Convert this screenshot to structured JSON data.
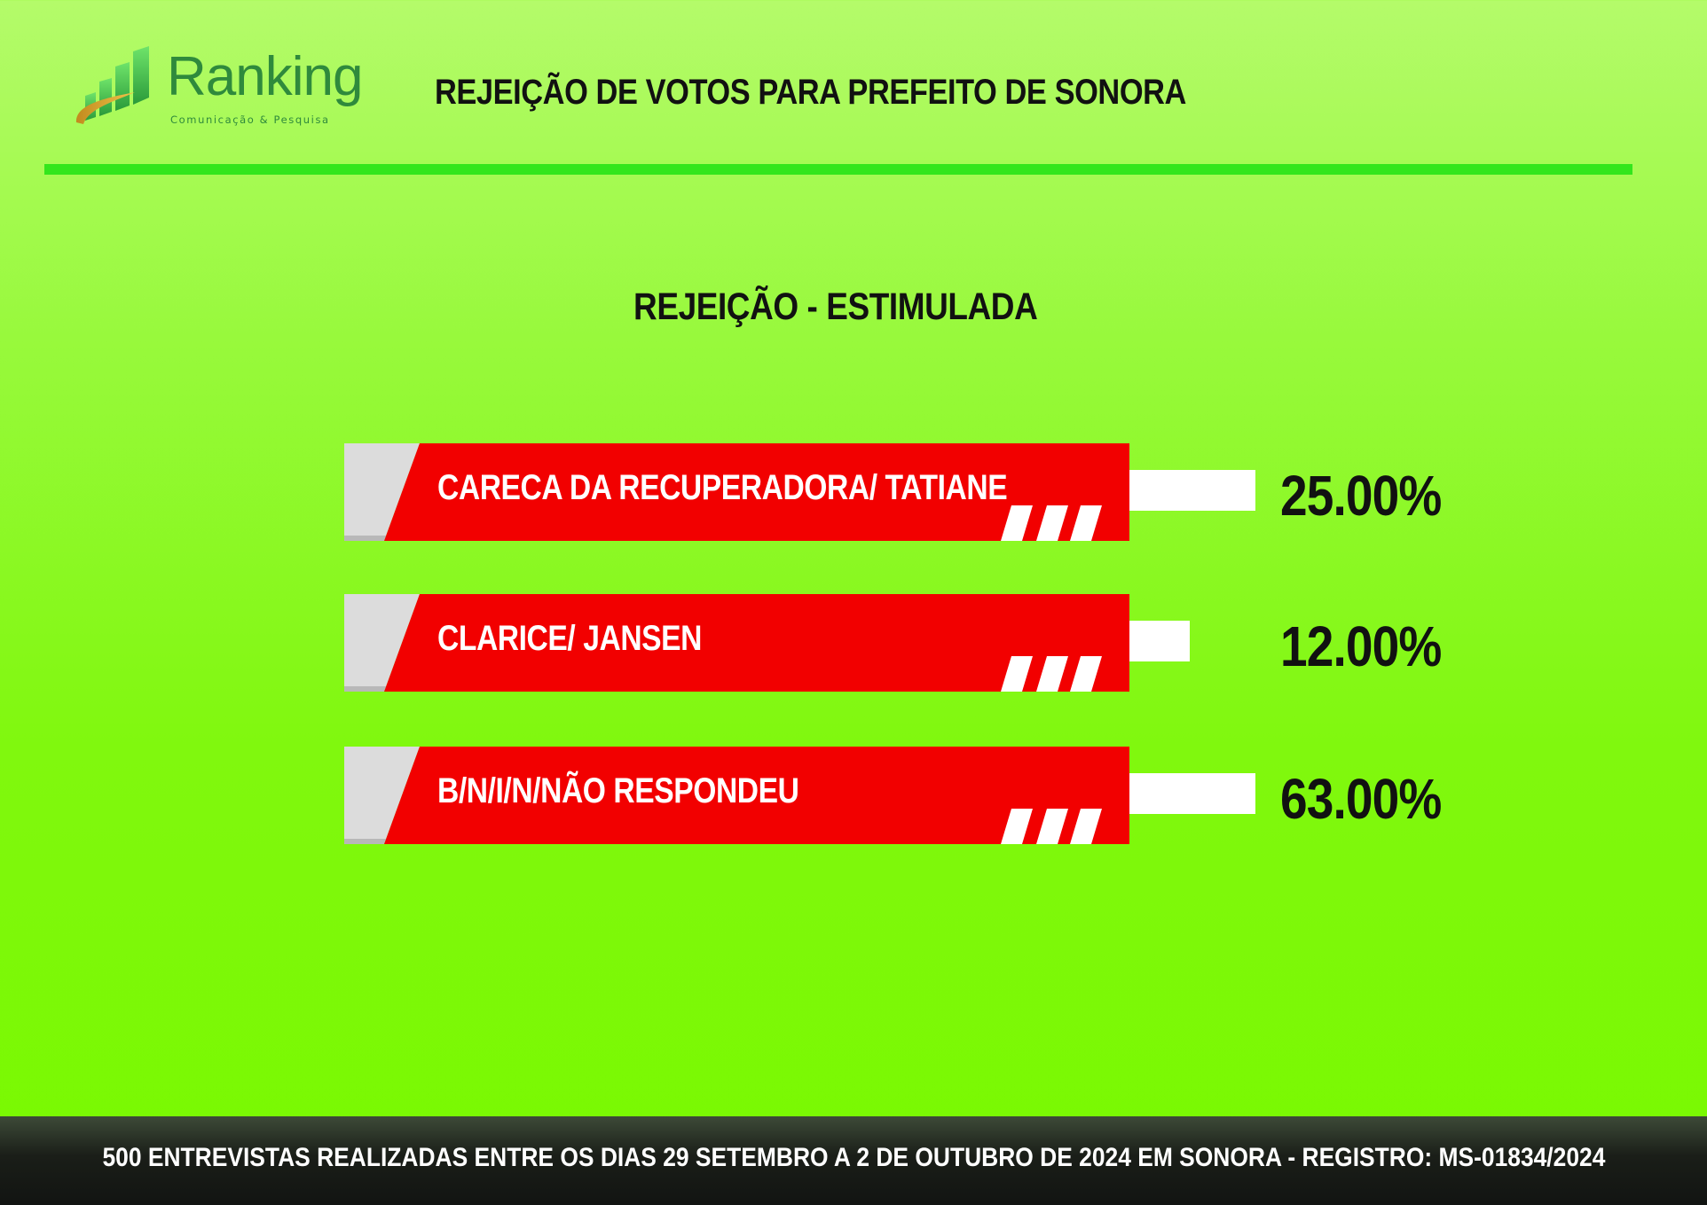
{
  "logo": {
    "name": "Ranking",
    "tagline": "Comunicação & Pesquisa",
    "icon": "bar-chart-logo-icon"
  },
  "header": {
    "title": "REJEIÇÃO DE VOTOS PARA PREFEITO DE SONORA"
  },
  "colors": {
    "background": "#7cf900",
    "rule": "#33e61c",
    "banner_red": "#f20000",
    "banner_grey": "#dcdcdc",
    "value_bar": "#ffffff",
    "footer": "#151815"
  },
  "chart_data": {
    "type": "bar",
    "title": "REJEIÇÃO - ESTIMULADA",
    "categories": [
      "CARECA DA RECUPERADORA/ TATIANE",
      "CLARICE/ JANSEN",
      "B/N/I/N/NÃO RESPONDEU"
    ],
    "values": [
      25,
      12,
      63
    ],
    "value_labels": [
      "25.00%",
      "12.00%",
      "63.00%"
    ],
    "unit": "%",
    "orientation": "horizontal"
  },
  "footer": {
    "text": "500 ENTREVISTAS REALIZADAS ENTRE OS DIAS 29 SETEMBRO  A 2 DE OUTUBRO DE 2024 EM SONORA - REGISTRO: MS-01834/2024"
  }
}
